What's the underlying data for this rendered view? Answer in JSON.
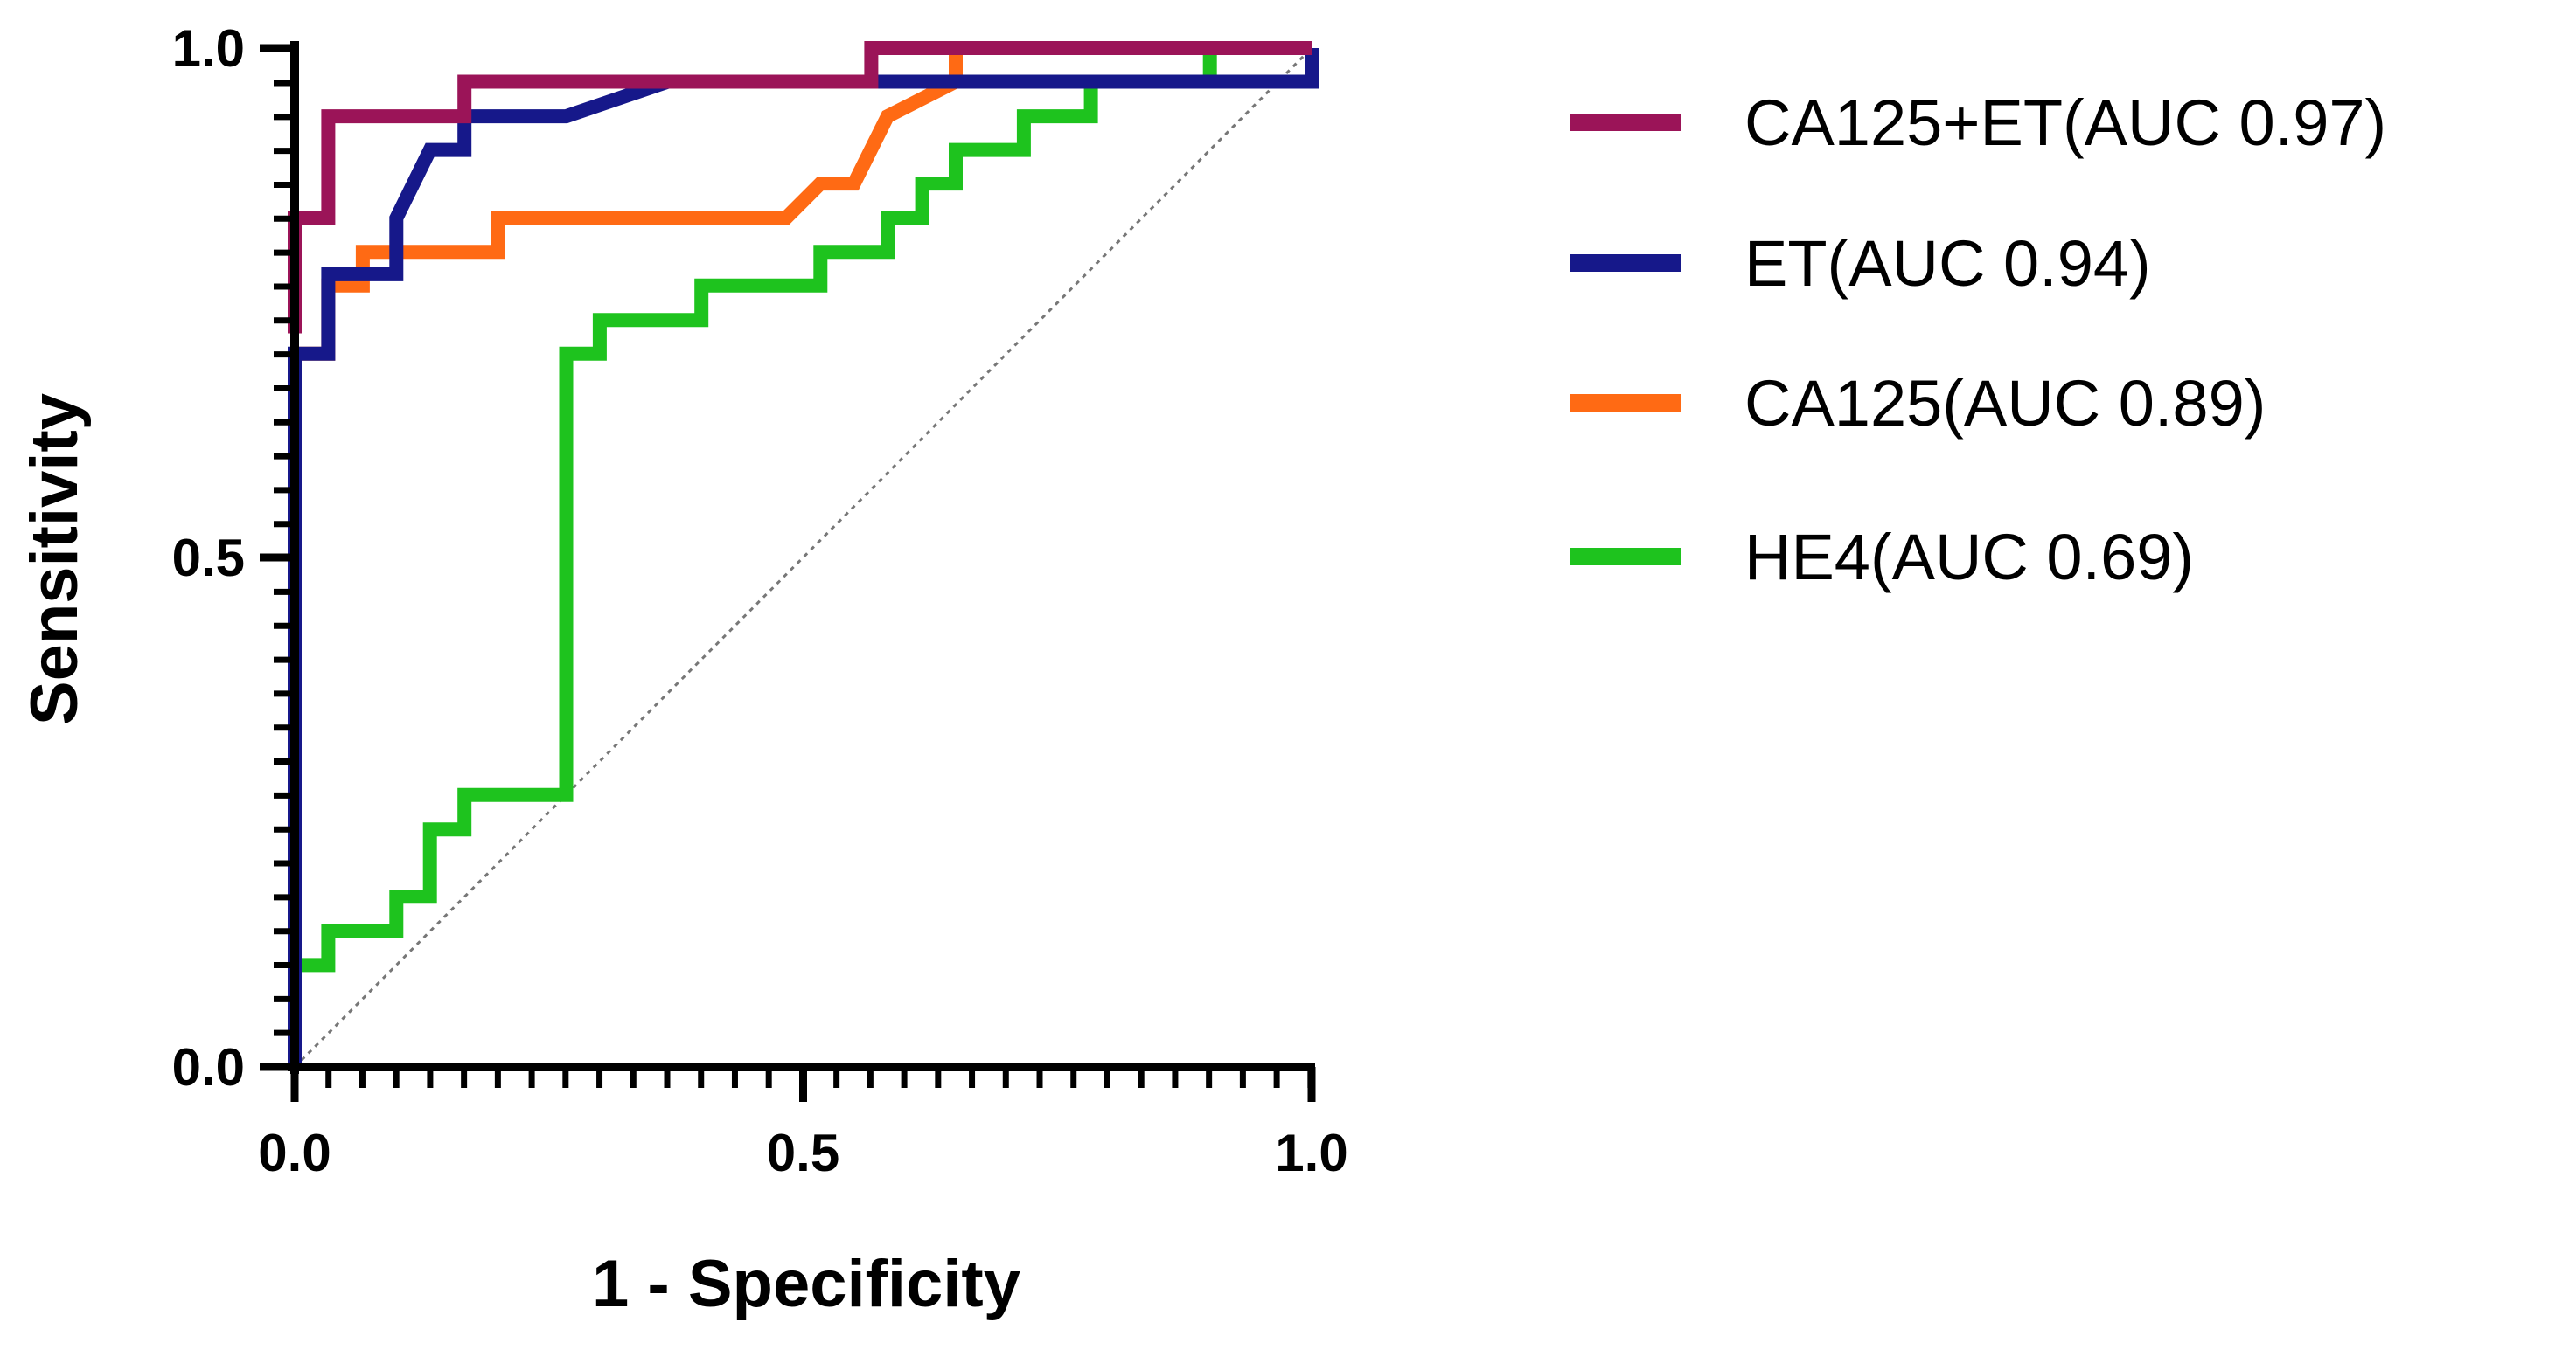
{
  "chart_data": {
    "type": "line",
    "title": "",
    "xlabel": "1 - Specificity",
    "ylabel": "Sensitivity",
    "xlim": [
      0,
      1
    ],
    "ylim": [
      0,
      1
    ],
    "xticks": [
      {
        "value": 0,
        "label": "0.0"
      },
      {
        "value": 0.5,
        "label": "0.5"
      },
      {
        "value": 1,
        "label": "1.0"
      }
    ],
    "yticks": [
      {
        "value": 0,
        "label": "0.0"
      },
      {
        "value": 0.5,
        "label": "0.5"
      },
      {
        "value": 1,
        "label": "1.0"
      }
    ],
    "x_minor_step": 0.0333,
    "y_minor_step": 0.0333,
    "grid": false,
    "legend_position": "right",
    "reference_line": {
      "x": [
        0,
        1
      ],
      "y": [
        0,
        1
      ],
      "style": "dotted",
      "color": "#777777"
    },
    "series": [
      {
        "name": "CA125+ET(AUC 0.97)",
        "color": "#9b1458",
        "points": [
          [
            0,
            0.72
          ],
          [
            0,
            0.833
          ],
          [
            0.033,
            0.833
          ],
          [
            0.033,
            0.933
          ],
          [
            0.167,
            0.933
          ],
          [
            0.167,
            0.967
          ],
          [
            0.567,
            0.967
          ],
          [
            0.567,
            1.0
          ],
          [
            1.0,
            1.0
          ]
        ]
      },
      {
        "name": "ET(AUC 0.94)",
        "color": "#16188a",
        "points": [
          [
            0,
            0
          ],
          [
            0,
            0.7
          ],
          [
            0.033,
            0.7
          ],
          [
            0.033,
            0.778
          ],
          [
            0.1,
            0.778
          ],
          [
            0.1,
            0.833
          ],
          [
            0.133,
            0.9
          ],
          [
            0.167,
            0.9
          ],
          [
            0.167,
            0.933
          ],
          [
            0.267,
            0.933
          ],
          [
            0.367,
            0.967
          ],
          [
            1.0,
            0.967
          ],
          [
            1.0,
            1.0
          ]
        ]
      },
      {
        "name": "CA125(AUC 0.89)",
        "color": "#ff6a14",
        "points": [
          [
            0,
            0.7
          ],
          [
            0.033,
            0.7
          ],
          [
            0.033,
            0.767
          ],
          [
            0.067,
            0.767
          ],
          [
            0.067,
            0.8
          ],
          [
            0.2,
            0.8
          ],
          [
            0.2,
            0.833
          ],
          [
            0.483,
            0.833
          ],
          [
            0.517,
            0.867
          ],
          [
            0.55,
            0.867
          ],
          [
            0.583,
            0.933
          ],
          [
            0.65,
            0.967
          ],
          [
            0.65,
            1.0
          ]
        ]
      },
      {
        "name": "HE4(AUC 0.69)",
        "color": "#1ec31e",
        "points": [
          [
            0,
            0.1
          ],
          [
            0.033,
            0.1
          ],
          [
            0.033,
            0.133
          ],
          [
            0.1,
            0.133
          ],
          [
            0.1,
            0.167
          ],
          [
            0.133,
            0.167
          ],
          [
            0.133,
            0.233
          ],
          [
            0.167,
            0.233
          ],
          [
            0.167,
            0.267
          ],
          [
            0.267,
            0.267
          ],
          [
            0.267,
            0.7
          ],
          [
            0.3,
            0.7
          ],
          [
            0.3,
            0.733
          ],
          [
            0.4,
            0.733
          ],
          [
            0.4,
            0.767
          ],
          [
            0.517,
            0.767
          ],
          [
            0.517,
            0.8
          ],
          [
            0.583,
            0.8
          ],
          [
            0.583,
            0.833
          ],
          [
            0.617,
            0.833
          ],
          [
            0.617,
            0.867
          ],
          [
            0.65,
            0.867
          ],
          [
            0.65,
            0.9
          ],
          [
            0.717,
            0.9
          ],
          [
            0.717,
            0.933
          ],
          [
            0.783,
            0.933
          ],
          [
            0.783,
            0.967
          ],
          [
            0.9,
            0.967
          ],
          [
            0.9,
            1.0
          ]
        ]
      }
    ]
  }
}
